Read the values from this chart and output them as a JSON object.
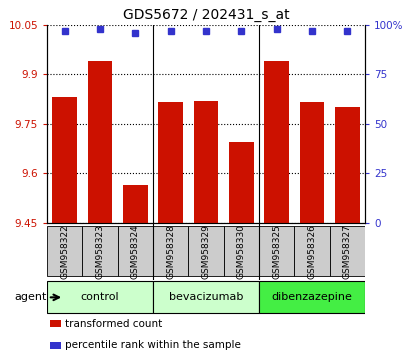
{
  "title": "GDS5672 / 202431_s_at",
  "samples": [
    "GSM958322",
    "GSM958323",
    "GSM958324",
    "GSM958328",
    "GSM958329",
    "GSM958330",
    "GSM958325",
    "GSM958326",
    "GSM958327"
  ],
  "bar_values": [
    9.83,
    9.94,
    9.565,
    9.815,
    9.82,
    9.695,
    9.94,
    9.815,
    9.8
  ],
  "percentile_values": [
    97,
    98,
    96,
    97,
    97,
    97,
    98,
    97,
    97
  ],
  "ylim_left": [
    9.45,
    10.05
  ],
  "ylim_right": [
    0,
    100
  ],
  "yticks_left": [
    9.45,
    9.6,
    9.75,
    9.9,
    10.05
  ],
  "yticks_right": [
    0,
    25,
    50,
    75,
    100
  ],
  "ytick_labels_right": [
    "0",
    "25",
    "50",
    "75",
    "100%"
  ],
  "bar_color": "#cc1100",
  "dot_color": "#3333cc",
  "groups": [
    {
      "label": "control",
      "indices": [
        0,
        1,
        2
      ],
      "color": "#ccffcc"
    },
    {
      "label": "bevacizumab",
      "indices": [
        3,
        4,
        5
      ],
      "color": "#ccffcc"
    },
    {
      "label": "dibenzazepine",
      "indices": [
        6,
        7,
        8
      ],
      "color": "#44ee44"
    }
  ],
  "agent_label": "agent",
  "legend_items": [
    {
      "color": "#cc1100",
      "label": "transformed count"
    },
    {
      "color": "#3333cc",
      "label": "percentile rank within the sample"
    }
  ],
  "sample_box_color": "#cccccc",
  "spine_color": "#000000"
}
